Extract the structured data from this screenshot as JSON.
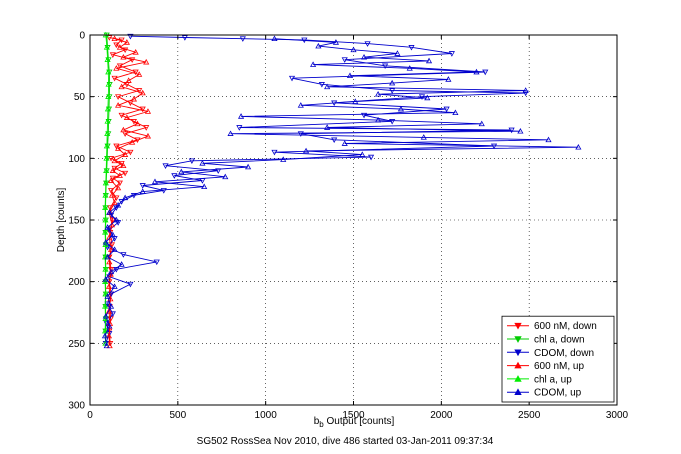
{
  "chart_data": {
    "type": "scatter",
    "xlabel_main": "b",
    "xlabel_sub": "b",
    "xlabel_rest": " Output [counts]",
    "ylabel": "Depth [counts]",
    "caption": "SG502 RossSea Nov 2010, dive 486 started 03-Jan-2011 09:37:34",
    "xlim": [
      0,
      3000
    ],
    "ylim": [
      0,
      300
    ],
    "y_reversed": true,
    "x_ticks": [
      "0",
      "500",
      "1000",
      "1500",
      "2000",
      "2500",
      "3000"
    ],
    "y_ticks": [
      "0",
      "50",
      "100",
      "150",
      "200",
      "250",
      "300"
    ],
    "grid": "dotted",
    "legend_position": "bottom-right",
    "series": [
      {
        "name": "600 nM, down",
        "color": "#ff0000",
        "marker": "triangle-down",
        "line": true,
        "points": [
          [
            110,
            2
          ],
          [
            180,
            4
          ],
          [
            150,
            8
          ],
          [
            200,
            12
          ],
          [
            130,
            16
          ],
          [
            240,
            20
          ],
          [
            170,
            25
          ],
          [
            260,
            30
          ],
          [
            140,
            35
          ],
          [
            210,
            40
          ],
          [
            280,
            45
          ],
          [
            160,
            50
          ],
          [
            230,
            55
          ],
          [
            300,
            60
          ],
          [
            180,
            65
          ],
          [
            250,
            70
          ],
          [
            320,
            75
          ],
          [
            200,
            80
          ],
          [
            270,
            85
          ],
          [
            150,
            90
          ],
          [
            230,
            95
          ],
          [
            120,
            100
          ],
          [
            180,
            104
          ],
          [
            140,
            108
          ],
          [
            200,
            112
          ],
          [
            130,
            116
          ],
          [
            170,
            120
          ],
          [
            120,
            126
          ],
          [
            150,
            132
          ],
          [
            115,
            140
          ],
          [
            130,
            150
          ],
          [
            115,
            160
          ],
          [
            125,
            170
          ],
          [
            110,
            180
          ],
          [
            120,
            190
          ],
          [
            110,
            200
          ],
          [
            120,
            210
          ],
          [
            112,
            220
          ],
          [
            118,
            230
          ],
          [
            110,
            240
          ],
          [
            115,
            250
          ]
        ]
      },
      {
        "name": "chl a, down",
        "color": "#00cc00",
        "marker": "triangle-down",
        "line": true,
        "points": [
          [
            95,
            0
          ],
          [
            100,
            10
          ],
          [
            105,
            20
          ],
          [
            110,
            30
          ],
          [
            112,
            40
          ],
          [
            110,
            50
          ],
          [
            108,
            60
          ],
          [
            106,
            70
          ],
          [
            104,
            80
          ],
          [
            100,
            90
          ],
          [
            98,
            100
          ],
          [
            95,
            110
          ],
          [
            92,
            120
          ],
          [
            90,
            130
          ],
          [
            88,
            140
          ],
          [
            90,
            150
          ],
          [
            88,
            160
          ],
          [
            90,
            170
          ],
          [
            88,
            180
          ],
          [
            90,
            190
          ],
          [
            88,
            200
          ],
          [
            90,
            210
          ],
          [
            88,
            220
          ],
          [
            90,
            230
          ],
          [
            88,
            240
          ],
          [
            90,
            250
          ]
        ]
      },
      {
        "name": "CDOM, down",
        "color": "#0000cc",
        "marker": "triangle-down",
        "line": true,
        "points": [
          [
            230,
            1
          ],
          [
            540,
            2
          ],
          [
            870,
            3
          ],
          [
            1220,
            4
          ],
          [
            1580,
            7
          ],
          [
            1830,
            10
          ],
          [
            2060,
            15
          ],
          [
            1450,
            20
          ],
          [
            1680,
            25
          ],
          [
            2250,
            30
          ],
          [
            1150,
            35
          ],
          [
            1320,
            40
          ],
          [
            1720,
            45
          ],
          [
            2480,
            47
          ],
          [
            1890,
            50
          ],
          [
            1390,
            55
          ],
          [
            2030,
            60
          ],
          [
            1560,
            65
          ],
          [
            1720,
            70
          ],
          [
            850,
            75
          ],
          [
            2400,
            77
          ],
          [
            1200,
            80
          ],
          [
            1390,
            85
          ],
          [
            2300,
            90
          ],
          [
            1050,
            95
          ],
          [
            1600,
            99
          ],
          [
            580,
            102
          ],
          [
            430,
            106
          ],
          [
            730,
            110
          ],
          [
            480,
            114
          ],
          [
            640,
            118
          ],
          [
            300,
            122
          ],
          [
            420,
            126
          ],
          [
            250,
            130
          ],
          [
            180,
            135
          ],
          [
            150,
            140
          ],
          [
            120,
            146
          ],
          [
            160,
            152
          ],
          [
            110,
            158
          ],
          [
            140,
            165
          ],
          [
            100,
            172
          ],
          [
            190,
            178
          ],
          [
            380,
            184
          ],
          [
            150,
            190
          ],
          [
            110,
            196
          ],
          [
            230,
            202
          ],
          [
            120,
            210
          ],
          [
            100,
            218
          ],
          [
            130,
            226
          ],
          [
            95,
            234
          ],
          [
            110,
            242
          ],
          [
            90,
            250
          ]
        ]
      },
      {
        "name": "600 nM, up",
        "color": "#ff0000",
        "marker": "triangle-up",
        "line": true,
        "points": [
          [
            140,
            3
          ],
          [
            210,
            6
          ],
          [
            170,
            10
          ],
          [
            260,
            14
          ],
          [
            190,
            18
          ],
          [
            320,
            22
          ],
          [
            150,
            27
          ],
          [
            280,
            32
          ],
          [
            220,
            37
          ],
          [
            180,
            42
          ],
          [
            300,
            47
          ],
          [
            250,
            52
          ],
          [
            160,
            57
          ],
          [
            330,
            62
          ],
          [
            210,
            67
          ],
          [
            270,
            72
          ],
          [
            190,
            77
          ],
          [
            330,
            82
          ],
          [
            240,
            87
          ],
          [
            160,
            92
          ],
          [
            200,
            97
          ],
          [
            140,
            102
          ],
          [
            190,
            106
          ],
          [
            130,
            110
          ],
          [
            170,
            114
          ],
          [
            120,
            118
          ],
          [
            160,
            124
          ],
          [
            125,
            130
          ],
          [
            140,
            136
          ],
          [
            110,
            144
          ],
          [
            125,
            154
          ],
          [
            110,
            164
          ],
          [
            120,
            174
          ],
          [
            110,
            184
          ],
          [
            118,
            194
          ],
          [
            108,
            204
          ],
          [
            116,
            214
          ],
          [
            108,
            224
          ],
          [
            114,
            234
          ],
          [
            108,
            244
          ],
          [
            112,
            252
          ]
        ]
      },
      {
        "name": "chl a, up",
        "color": "#00ee00",
        "marker": "triangle-up",
        "line": true,
        "points": [
          [
            90,
            0
          ],
          [
            96,
            10
          ],
          [
            100,
            20
          ],
          [
            104,
            30
          ],
          [
            106,
            40
          ],
          [
            104,
            50
          ],
          [
            102,
            60
          ],
          [
            100,
            70
          ],
          [
            98,
            80
          ],
          [
            96,
            90
          ],
          [
            94,
            100
          ],
          [
            92,
            110
          ],
          [
            90,
            120
          ],
          [
            88,
            130
          ],
          [
            86,
            140
          ],
          [
            88,
            150
          ],
          [
            86,
            160
          ],
          [
            88,
            170
          ],
          [
            86,
            180
          ],
          [
            88,
            190
          ],
          [
            86,
            200
          ],
          [
            88,
            210
          ],
          [
            86,
            220
          ],
          [
            88,
            230
          ],
          [
            86,
            240
          ],
          [
            88,
            250
          ]
        ]
      },
      {
        "name": "CDOM, up",
        "color": "#0000cc",
        "marker": "triangle-up",
        "line": true,
        "points": [
          [
            1050,
            3
          ],
          [
            1400,
            6
          ],
          [
            1300,
            9
          ],
          [
            1500,
            12
          ],
          [
            1750,
            15
          ],
          [
            1560,
            18
          ],
          [
            1930,
            21
          ],
          [
            1270,
            24
          ],
          [
            1820,
            27
          ],
          [
            2200,
            30
          ],
          [
            1480,
            33
          ],
          [
            2040,
            36
          ],
          [
            1720,
            39
          ],
          [
            1350,
            42
          ],
          [
            2480,
            45
          ],
          [
            1640,
            48
          ],
          [
            1920,
            51
          ],
          [
            1510,
            54
          ],
          [
            1200,
            57
          ],
          [
            1770,
            60
          ],
          [
            2080,
            63
          ],
          [
            860,
            66
          ],
          [
            1640,
            69
          ],
          [
            2230,
            72
          ],
          [
            1350,
            75
          ],
          [
            2450,
            78
          ],
          [
            800,
            80
          ],
          [
            1900,
            83
          ],
          [
            2610,
            85
          ],
          [
            1450,
            88
          ],
          [
            2780,
            91
          ],
          [
            1230,
            94
          ],
          [
            1550,
            97
          ],
          [
            1100,
            101
          ],
          [
            640,
            104
          ],
          [
            900,
            107
          ],
          [
            520,
            111
          ],
          [
            770,
            115
          ],
          [
            370,
            119
          ],
          [
            650,
            123
          ],
          [
            300,
            127
          ],
          [
            200,
            132
          ],
          [
            160,
            138
          ],
          [
            110,
            144
          ],
          [
            150,
            150
          ],
          [
            100,
            156
          ],
          [
            130,
            162
          ],
          [
            90,
            168
          ],
          [
            140,
            174
          ],
          [
            100,
            180
          ],
          [
            180,
            186
          ],
          [
            120,
            192
          ],
          [
            90,
            198
          ],
          [
            140,
            204
          ],
          [
            100,
            212
          ],
          [
            120,
            220
          ],
          [
            90,
            228
          ],
          [
            110,
            236
          ],
          [
            85,
            244
          ],
          [
            95,
            252
          ]
        ]
      }
    ]
  }
}
